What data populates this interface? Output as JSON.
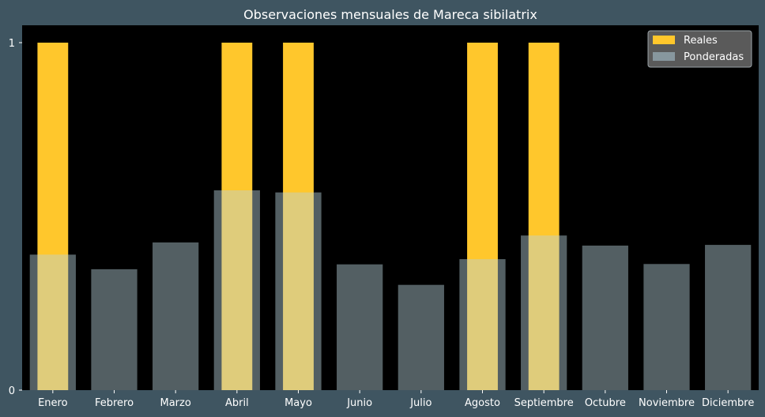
{
  "colors": {
    "background": "#3f5561",
    "plot_background": "#000000",
    "reales": "#ffc72c",
    "ponderadas": "#b9d2dc",
    "legend_background": "#5a5a5a",
    "text": "#ffffff"
  },
  "chart_data": {
    "type": "bar",
    "title": "Observaciones mensuales de Mareca sibilatrix",
    "xlabel": "",
    "ylabel": "",
    "ylim": [
      0,
      1.05
    ],
    "yticks": [
      "0",
      "1"
    ],
    "grid": false,
    "legend_position": "top-right",
    "categories": [
      "Enero",
      "Febrero",
      "Marzo",
      "Abril",
      "Mayo",
      "Junio",
      "Julio",
      "Agosto",
      "Septiembre",
      "Octubre",
      "Noviembre",
      "Diciembre"
    ],
    "series": [
      {
        "name": "Reales",
        "color": "#ffc72c",
        "values": [
          1,
          0,
          0,
          1,
          1,
          0,
          0,
          1,
          1,
          0,
          0,
          0
        ]
      },
      {
        "name": "Ponderadas",
        "color": "#b9d2dc",
        "opacity": 0.45,
        "values": [
          0.39,
          0.348,
          0.425,
          0.575,
          0.569,
          0.362,
          0.303,
          0.377,
          0.445,
          0.416,
          0.363,
          0.418
        ]
      }
    ]
  }
}
